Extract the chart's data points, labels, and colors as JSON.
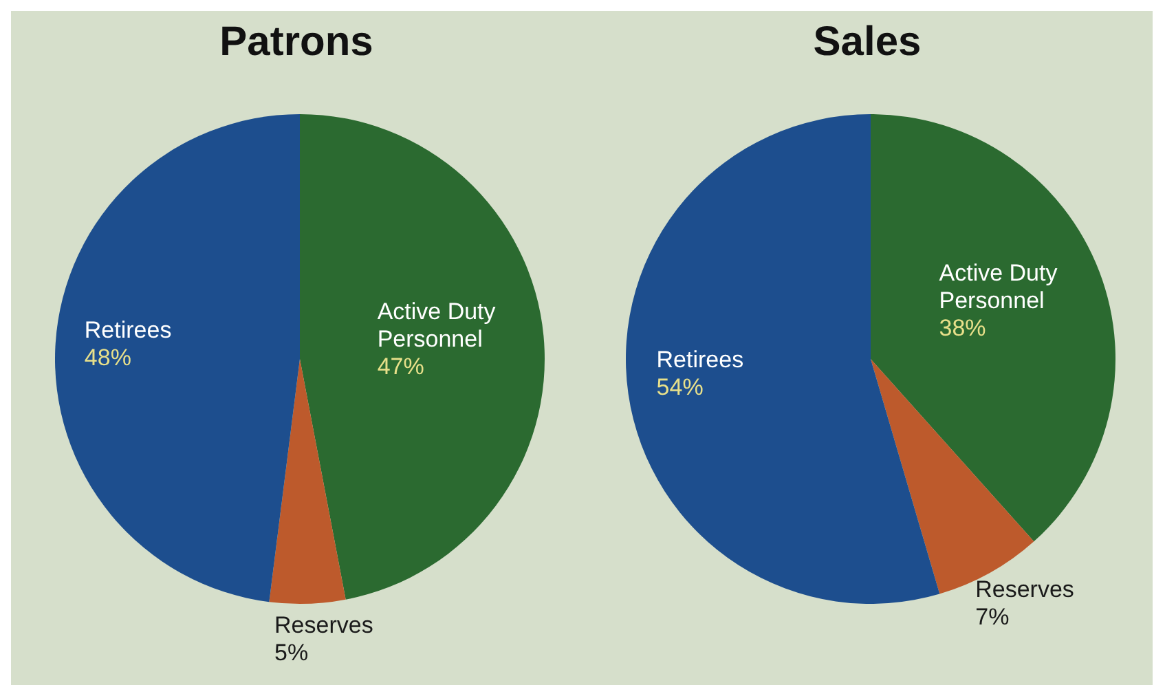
{
  "chart_data": [
    {
      "type": "pie",
      "title": "Patrons",
      "categories": [
        "Active Duty Personnel",
        "Reserves",
        "Retirees"
      ],
      "values": [
        47,
        5,
        48
      ],
      "colors": [
        "#2b6a30",
        "#bd5a2c",
        "#1d4e8e"
      ],
      "value_labels": [
        "47%",
        "5%",
        "48%"
      ]
    },
    {
      "type": "pie",
      "title": "Sales",
      "categories": [
        "Active Duty Personnel",
        "Reserves",
        "Retirees"
      ],
      "values": [
        38,
        7,
        54
      ],
      "colors": [
        "#2b6a30",
        "#bd5a2c",
        "#1d4e8e"
      ],
      "value_labels": [
        "38%",
        "7%",
        "54%"
      ]
    }
  ]
}
